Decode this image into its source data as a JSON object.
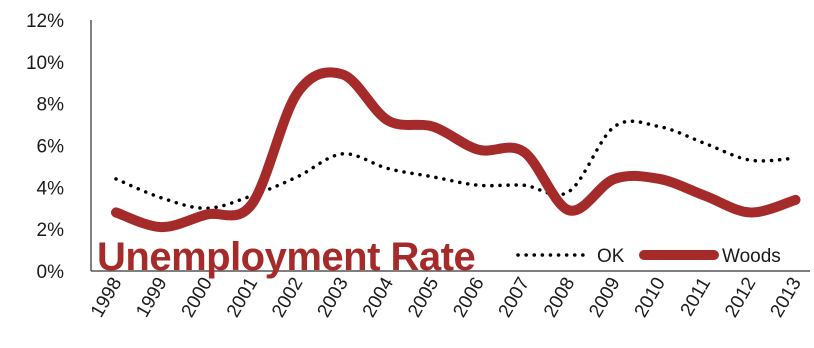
{
  "chart_data": {
    "type": "line",
    "title": "Unemployment Rate",
    "categories": [
      "1998",
      "1999",
      "2000",
      "2001",
      "2002",
      "2003",
      "2004",
      "2005",
      "2006",
      "2007",
      "2008",
      "2009",
      "2010",
      "2011",
      "2012",
      "2013"
    ],
    "ylim": [
      0,
      12
    ],
    "yticks": [
      "0%",
      "2%",
      "4%",
      "6%",
      "8%",
      "10%",
      "12%"
    ],
    "grid": false,
    "legend_position": "bottom-right",
    "series": [
      {
        "name": "OK",
        "style": "dotted",
        "color": "#000000",
        "values": [
          4.4,
          3.5,
          3.0,
          3.6,
          4.5,
          5.6,
          4.9,
          4.5,
          4.1,
          4.1,
          3.8,
          6.9,
          6.9,
          6.1,
          5.3,
          5.4
        ]
      },
      {
        "name": "Woods",
        "style": "solid-thick",
        "color": "#a52a2a",
        "values": [
          2.8,
          2.1,
          2.7,
          3.2,
          8.5,
          9.4,
          7.2,
          6.9,
          5.8,
          5.7,
          2.9,
          4.4,
          4.4,
          3.6,
          2.8,
          3.4
        ]
      }
    ]
  }
}
